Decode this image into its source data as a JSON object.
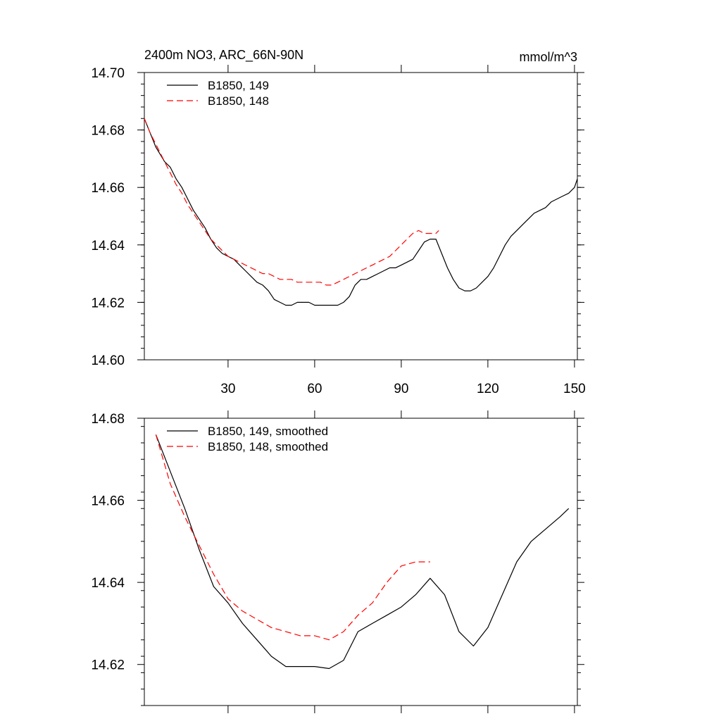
{
  "chart_data": [
    {
      "type": "line",
      "title": "2400m NO3, ARC_66N-90N",
      "units": "mmol/m^3",
      "xlim": [
        1,
        151
      ],
      "ylim": [
        14.6,
        14.7
      ],
      "xticks": [
        30,
        60,
        90,
        120,
        150
      ],
      "yticks": [
        14.6,
        14.62,
        14.64,
        14.66,
        14.68,
        14.7
      ],
      "ytick_labels": [
        "14.60",
        "14.62",
        "14.64",
        "14.66",
        "14.68",
        "14.70"
      ],
      "legend_position": "top-left",
      "series": [
        {
          "name": "B1850, 149",
          "color": "#000000",
          "dash": "solid",
          "x": [
            1,
            3,
            5,
            8,
            10,
            12,
            14,
            16,
            18,
            20,
            22,
            24,
            26,
            28,
            30,
            32,
            34,
            36,
            38,
            40,
            42,
            44,
            46,
            48,
            50,
            52,
            54,
            56,
            58,
            60,
            62,
            64,
            66,
            68,
            70,
            72,
            74,
            76,
            78,
            80,
            82,
            84,
            86,
            88,
            90,
            92,
            94,
            96,
            98,
            100,
            102,
            104,
            106,
            108,
            110,
            112,
            114,
            116,
            118,
            120,
            122,
            124,
            126,
            128,
            130,
            132,
            134,
            136,
            138,
            140,
            142,
            144,
            146,
            148,
            150,
            151
          ],
          "values": [
            14.684,
            14.679,
            14.674,
            14.669,
            14.667,
            14.663,
            14.66,
            14.656,
            14.652,
            14.649,
            14.646,
            14.642,
            14.639,
            14.637,
            14.636,
            14.635,
            14.633,
            14.631,
            14.629,
            14.627,
            14.626,
            14.624,
            14.621,
            14.62,
            14.619,
            14.619,
            14.62,
            14.62,
            14.62,
            14.619,
            14.619,
            14.619,
            14.619,
            14.619,
            14.62,
            14.622,
            14.626,
            14.628,
            14.628,
            14.629,
            14.63,
            14.631,
            14.632,
            14.632,
            14.633,
            14.634,
            14.635,
            14.638,
            14.641,
            14.642,
            14.642,
            14.637,
            14.632,
            14.628,
            14.625,
            14.624,
            14.624,
            14.625,
            14.627,
            14.629,
            14.632,
            14.636,
            14.64,
            14.643,
            14.645,
            14.647,
            14.649,
            14.651,
            14.652,
            14.653,
            14.655,
            14.656,
            14.657,
            14.658,
            14.66,
            14.663
          ]
        },
        {
          "name": "B1850, 148",
          "color": "#ff0000",
          "dash": "dashed",
          "x": [
            1,
            3,
            5,
            8,
            10,
            12,
            14,
            16,
            18,
            20,
            22,
            24,
            26,
            28,
            30,
            32,
            34,
            36,
            38,
            40,
            42,
            44,
            46,
            48,
            50,
            52,
            54,
            56,
            58,
            60,
            62,
            64,
            66,
            68,
            70,
            72,
            74,
            76,
            78,
            80,
            82,
            84,
            86,
            88,
            90,
            92,
            94,
            96,
            98,
            100,
            102,
            103
          ],
          "values": [
            14.684,
            14.679,
            14.675,
            14.669,
            14.665,
            14.661,
            14.658,
            14.654,
            14.651,
            14.648,
            14.645,
            14.642,
            14.64,
            14.638,
            14.636,
            14.635,
            14.634,
            14.633,
            14.632,
            14.631,
            14.63,
            14.63,
            14.629,
            14.628,
            14.628,
            14.628,
            14.627,
            14.627,
            14.627,
            14.627,
            14.627,
            14.626,
            14.626,
            14.627,
            14.628,
            14.629,
            14.63,
            14.631,
            14.632,
            14.633,
            14.634,
            14.635,
            14.636,
            14.638,
            14.64,
            14.642,
            14.644,
            14.645,
            14.644,
            14.644,
            14.644,
            14.645
          ]
        }
      ]
    },
    {
      "type": "line",
      "xlim": [
        1,
        151
      ],
      "ylim": [
        14.61,
        14.68
      ],
      "xticks": [
        30,
        60,
        90,
        120,
        150
      ],
      "yticks": [
        14.62,
        14.64,
        14.66,
        14.68
      ],
      "ytick_labels": [
        "14.62",
        "14.64",
        "14.66",
        "14.68"
      ],
      "legend_position": "top-left",
      "series": [
        {
          "name": "B1850, 149, smoothed",
          "color": "#000000",
          "dash": "solid",
          "x": [
            5,
            10,
            15,
            20,
            25,
            30,
            35,
            40,
            45,
            50,
            55,
            60,
            65,
            70,
            75,
            80,
            85,
            90,
            95,
            100,
            105,
            110,
            115,
            120,
            125,
            130,
            135,
            140,
            145,
            148
          ],
          "values": [
            14.676,
            14.667,
            14.658,
            14.648,
            14.639,
            14.635,
            14.63,
            14.626,
            14.622,
            14.6195,
            14.6195,
            14.6195,
            14.619,
            14.621,
            14.628,
            14.63,
            14.632,
            14.634,
            14.637,
            14.641,
            14.637,
            14.628,
            14.6245,
            14.629,
            14.637,
            14.645,
            14.65,
            14.653,
            14.656,
            14.658
          ]
        },
        {
          "name": "B1850, 148, smoothed",
          "color": "#ff0000",
          "dash": "dashed",
          "x": [
            5,
            10,
            15,
            20,
            25,
            30,
            35,
            40,
            45,
            50,
            55,
            60,
            65,
            70,
            75,
            80,
            85,
            90,
            95,
            100
          ],
          "values": [
            14.676,
            14.664,
            14.656,
            14.649,
            14.642,
            14.636,
            14.633,
            14.631,
            14.629,
            14.628,
            14.627,
            14.627,
            14.626,
            14.628,
            14.632,
            14.635,
            14.64,
            14.644,
            14.645,
            14.645
          ]
        }
      ]
    }
  ]
}
